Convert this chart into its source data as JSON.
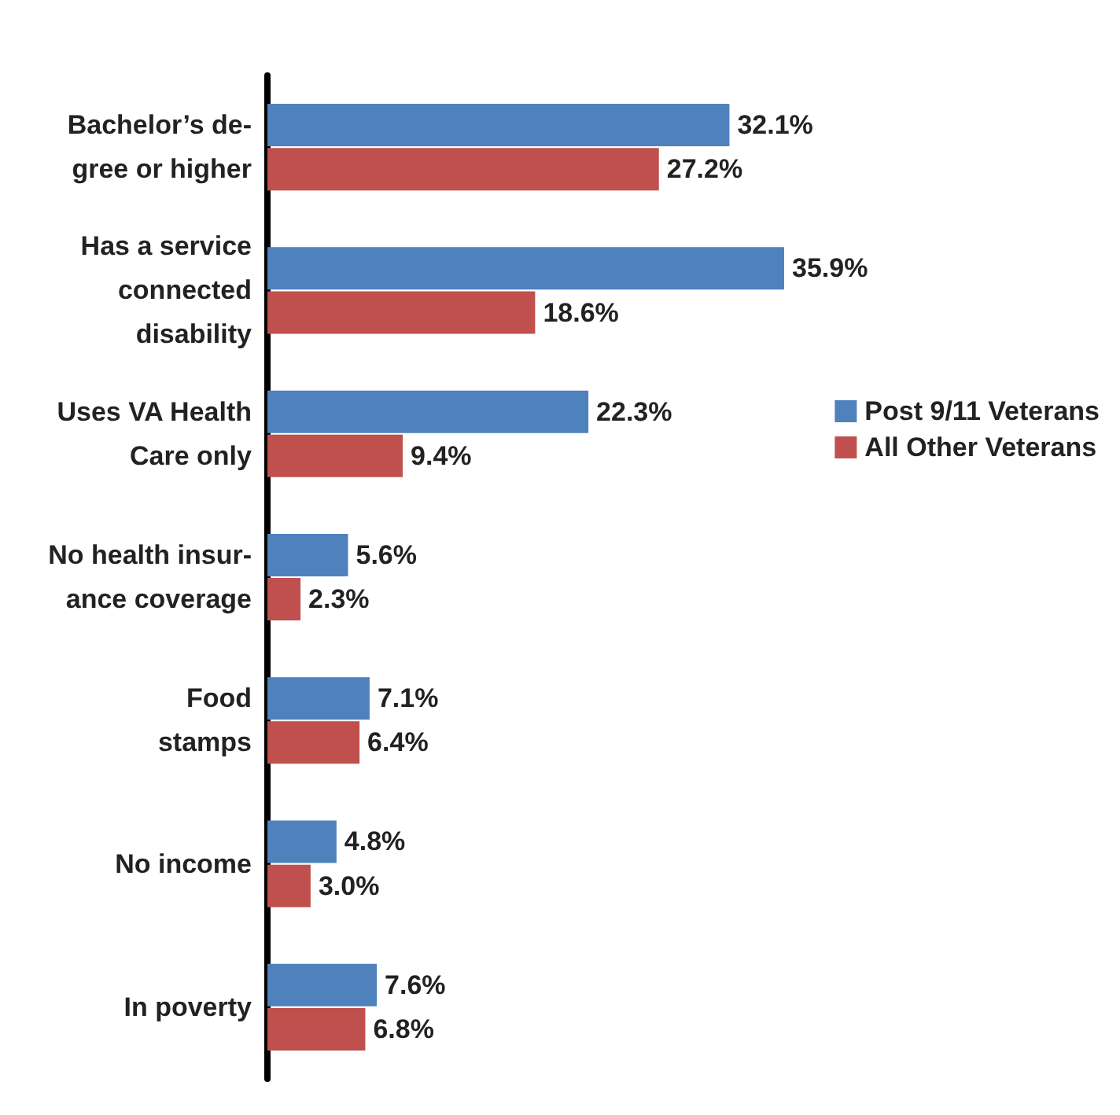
{
  "chart_data": {
    "type": "bar",
    "orientation": "horizontal",
    "categories": [
      "Bachelor’s de-\ngree or higher",
      "Has a service\nconnected\ndisability",
      "Uses VA Health\nCare only",
      "No health insur-\nance coverage",
      "Food\nstamps",
      "No income",
      "In poverty"
    ],
    "series": [
      {
        "name": "Post 9/11 Veterans",
        "color": "#4f81bd",
        "values": [
          32.1,
          35.9,
          22.3,
          5.6,
          7.1,
          4.8,
          7.6
        ],
        "value_labels": [
          "32.1%",
          "35.9%",
          "22.3%",
          "5.6%",
          "7.1%",
          "4.8%",
          "7.6%"
        ]
      },
      {
        "name": "All Other Veterans",
        "color": "#c0504d",
        "values": [
          27.2,
          18.6,
          9.4,
          2.3,
          6.4,
          3.0,
          6.8
        ],
        "value_labels": [
          "27.2%",
          "18.6%",
          "9.4%",
          "2.3%",
          "6.4%",
          "3.0%",
          "6.8%"
        ]
      }
    ],
    "legend": "right"
  }
}
